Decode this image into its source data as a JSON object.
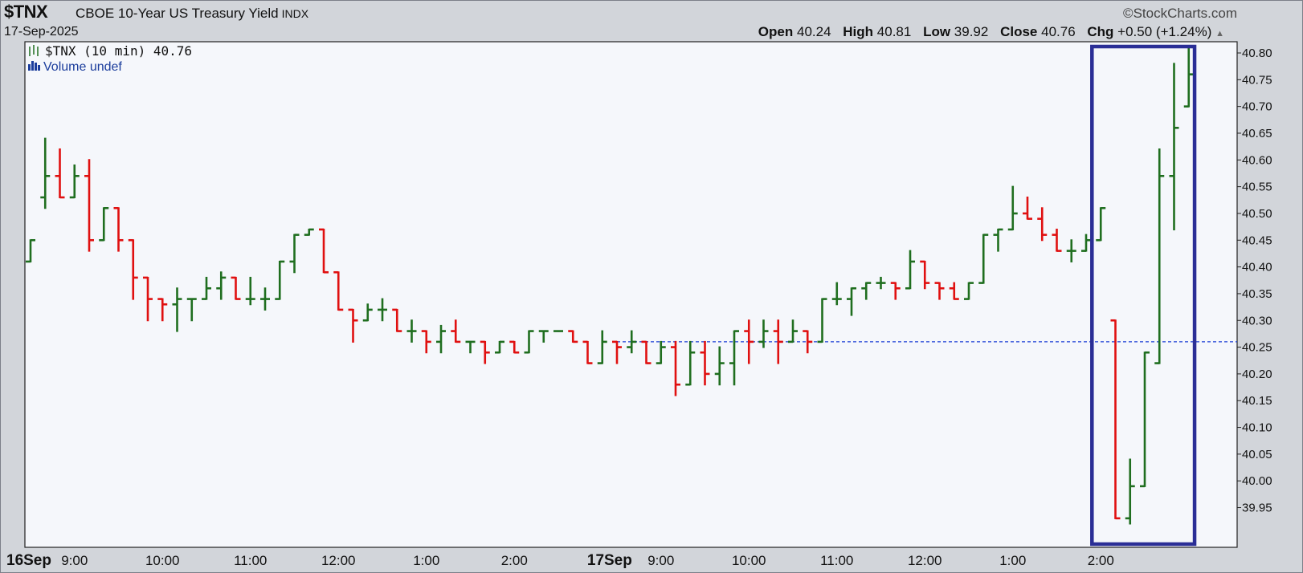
{
  "header": {
    "symbol": "$TNX",
    "name": "CBOE 10-Year US Treasury Yield",
    "exchange": "INDX",
    "date": "17-Sep-2025",
    "brand": "©StockCharts.com",
    "ohlc": {
      "open_label": "Open",
      "open": "40.24",
      "high_label": "High",
      "high": "40.81",
      "low_label": "Low",
      "low": "39.92",
      "close_label": "Close",
      "close": "40.76",
      "chg_label": "Chg",
      "chg": "+0.50 (+1.24%)"
    },
    "arrow": "▲"
  },
  "legend": {
    "price": "$TNX (10 min) 40.76",
    "volume": "Volume undef"
  },
  "colors": {
    "up": "#1f6e1f",
    "down": "#e01010",
    "reference_line": "#1a3dd6",
    "highlight_box": "#2a2e96"
  },
  "chart_data": {
    "type": "ohlc",
    "interval": "10 min",
    "ylim": [
      39.92,
      40.82
    ],
    "y_ticks": [
      39.95,
      40.0,
      40.05,
      40.1,
      40.15,
      40.2,
      40.25,
      40.3,
      40.35,
      40.4,
      40.45,
      40.5,
      40.55,
      40.6,
      40.65,
      40.7,
      40.75,
      40.8
    ],
    "x_ticks": [
      {
        "label": "16Sep",
        "bar": -0.5,
        "bold": true
      },
      {
        "label": "9:00",
        "bar": 3
      },
      {
        "label": "10:00",
        "bar": 9
      },
      {
        "label": "11:00",
        "bar": 15
      },
      {
        "label": "12:00",
        "bar": 21
      },
      {
        "label": "1:00",
        "bar": 27
      },
      {
        "label": "2:00",
        "bar": 33
      },
      {
        "label": "17Sep",
        "bar": 39.5,
        "bold": true
      },
      {
        "label": "9:00",
        "bar": 43
      },
      {
        "label": "10:00",
        "bar": 49
      },
      {
        "label": "11:00",
        "bar": 55
      },
      {
        "label": "12:00",
        "bar": 61
      },
      {
        "label": "1:00",
        "bar": 67
      },
      {
        "label": "2:00",
        "bar": 73
      }
    ],
    "reference_line": {
      "value": 40.26,
      "from_bar": 40
    },
    "highlight": {
      "from_bar": 72.4,
      "to_bar": 79.4
    },
    "bars": [
      [
        40.41,
        40.45,
        40.41,
        40.45
      ],
      [
        40.53,
        40.64,
        40.51,
        40.57
      ],
      [
        40.57,
        40.62,
        40.53,
        40.53
      ],
      [
        40.53,
        40.59,
        40.53,
        40.57
      ],
      [
        40.57,
        40.6,
        40.43,
        40.45
      ],
      [
        40.45,
        40.51,
        40.45,
        40.51
      ],
      [
        40.51,
        40.51,
        40.43,
        40.45
      ],
      [
        40.45,
        40.45,
        40.34,
        40.38
      ],
      [
        40.38,
        40.38,
        40.3,
        40.34
      ],
      [
        40.34,
        40.34,
        40.3,
        40.33
      ],
      [
        40.33,
        40.36,
        40.28,
        40.34
      ],
      [
        40.34,
        40.34,
        40.3,
        40.34
      ],
      [
        40.34,
        40.38,
        40.34,
        40.36
      ],
      [
        40.36,
        40.39,
        40.34,
        40.38
      ],
      [
        40.38,
        40.38,
        40.34,
        40.34
      ],
      [
        40.34,
        40.38,
        40.33,
        40.34
      ],
      [
        40.34,
        40.36,
        40.32,
        40.34
      ],
      [
        40.34,
        40.41,
        40.34,
        40.41
      ],
      [
        40.41,
        40.46,
        40.39,
        40.46
      ],
      [
        40.46,
        40.47,
        40.46,
        40.47
      ],
      [
        40.47,
        40.47,
        40.39,
        40.39
      ],
      [
        40.39,
        40.39,
        40.32,
        40.32
      ],
      [
        40.32,
        40.32,
        40.26,
        40.3
      ],
      [
        40.3,
        40.33,
        40.3,
        40.32
      ],
      [
        40.32,
        40.34,
        40.3,
        40.32
      ],
      [
        40.32,
        40.32,
        40.28,
        40.28
      ],
      [
        40.28,
        40.3,
        40.26,
        40.28
      ],
      [
        40.28,
        40.28,
        40.24,
        40.26
      ],
      [
        40.26,
        40.29,
        40.24,
        40.28
      ],
      [
        40.28,
        40.3,
        40.26,
        40.26
      ],
      [
        40.26,
        40.26,
        40.24,
        40.26
      ],
      [
        40.26,
        40.26,
        40.22,
        40.24
      ],
      [
        40.24,
        40.26,
        40.24,
        40.26
      ],
      [
        40.26,
        40.26,
        40.24,
        40.24
      ],
      [
        40.24,
        40.28,
        40.24,
        40.28
      ],
      [
        40.28,
        40.28,
        40.26,
        40.28
      ],
      [
        40.28,
        40.28,
        40.28,
        40.28
      ],
      [
        40.28,
        40.28,
        40.26,
        40.26
      ],
      [
        40.26,
        40.26,
        40.22,
        40.22
      ],
      [
        40.22,
        40.28,
        40.22,
        40.26
      ],
      [
        40.26,
        40.26,
        40.22,
        40.25
      ],
      [
        40.25,
        40.28,
        40.24,
        40.26
      ],
      [
        40.26,
        40.26,
        40.22,
        40.22
      ],
      [
        40.22,
        40.26,
        40.22,
        40.25
      ],
      [
        40.25,
        40.26,
        40.16,
        40.18
      ],
      [
        40.18,
        40.26,
        40.18,
        40.24
      ],
      [
        40.24,
        40.26,
        40.18,
        40.2
      ],
      [
        40.2,
        40.25,
        40.18,
        40.22
      ],
      [
        40.22,
        40.28,
        40.18,
        40.28
      ],
      [
        40.28,
        40.3,
        40.22,
        40.26
      ],
      [
        40.26,
        40.3,
        40.25,
        40.28
      ],
      [
        40.28,
        40.3,
        40.22,
        40.26
      ],
      [
        40.26,
        40.3,
        40.26,
        40.28
      ],
      [
        40.28,
        40.28,
        40.24,
        40.26
      ],
      [
        40.26,
        40.34,
        40.26,
        40.34
      ],
      [
        40.34,
        40.37,
        40.33,
        40.34
      ],
      [
        40.34,
        40.36,
        40.31,
        40.36
      ],
      [
        40.36,
        40.37,
        40.34,
        40.37
      ],
      [
        40.37,
        40.38,
        40.36,
        40.37
      ],
      [
        40.37,
        40.37,
        40.34,
        40.36
      ],
      [
        40.36,
        40.43,
        40.36,
        40.41
      ],
      [
        40.41,
        40.41,
        40.36,
        40.37
      ],
      [
        40.37,
        40.37,
        40.34,
        40.36
      ],
      [
        40.36,
        40.37,
        40.34,
        40.34
      ],
      [
        40.34,
        40.37,
        40.34,
        40.37
      ],
      [
        40.37,
        40.46,
        40.37,
        40.46
      ],
      [
        40.46,
        40.47,
        40.43,
        40.47
      ],
      [
        40.47,
        40.55,
        40.47,
        40.5
      ],
      [
        40.5,
        40.53,
        40.49,
        40.49
      ],
      [
        40.49,
        40.51,
        40.45,
        40.46
      ],
      [
        40.46,
        40.47,
        40.43,
        40.43
      ],
      [
        40.43,
        40.45,
        40.41,
        40.43
      ],
      [
        40.43,
        40.46,
        40.43,
        40.45
      ],
      [
        40.45,
        40.51,
        40.45,
        40.51
      ],
      [
        40.3,
        40.3,
        39.93,
        39.93
      ],
      [
        39.93,
        40.04,
        39.92,
        39.99
      ],
      [
        39.99,
        40.24,
        39.99,
        40.24
      ],
      [
        40.22,
        40.62,
        40.22,
        40.57
      ],
      [
        40.57,
        40.78,
        40.47,
        40.66
      ],
      [
        40.7,
        40.81,
        40.7,
        40.76
      ]
    ]
  }
}
